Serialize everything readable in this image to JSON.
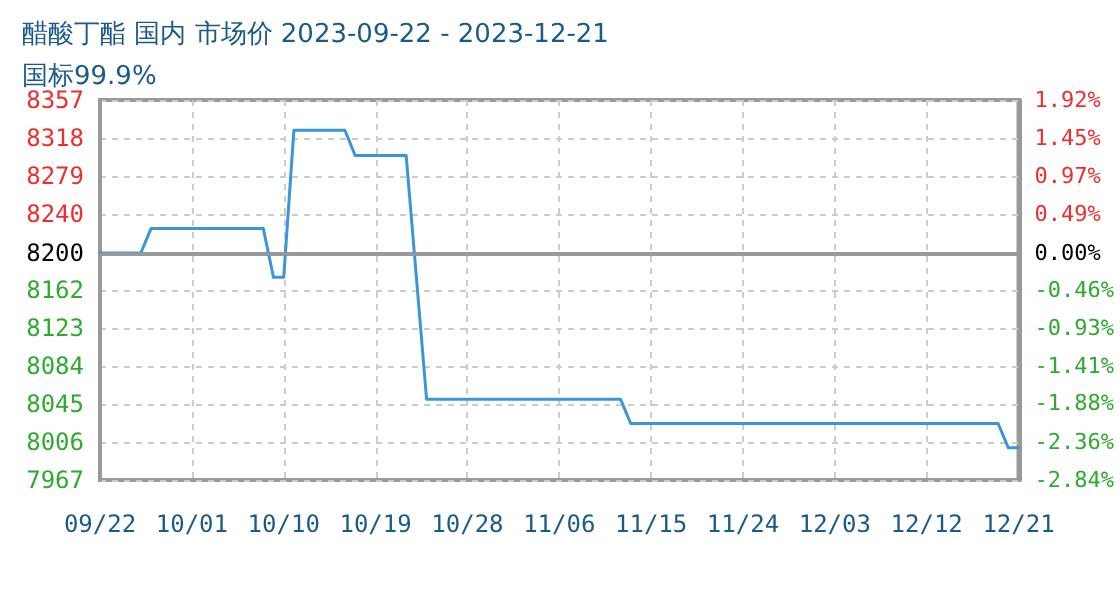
{
  "chart_data": {
    "type": "line",
    "title": "醋酸丁酯 国内 市场价 2023-09-22 - 2023-12-21",
    "subtitle": "国标99.9%",
    "series": [
      {
        "color": "#3a96d8",
        "x": [
          "2023-09-22",
          "2023-09-26",
          "2023-09-27",
          "2023-10-08",
          "2023-10-09",
          "2023-10-10",
          "2023-10-11",
          "2023-10-16",
          "2023-10-17",
          "2023-10-22",
          "2023-10-24",
          "2023-11-12",
          "2023-11-13",
          "2023-12-19",
          "2023-12-20",
          "2023-12-21"
        ],
        "values": [
          8200,
          8200,
          8225,
          8225,
          8175,
          8175,
          8326,
          8326,
          8300,
          8300,
          8050,
          8050,
          8025,
          8025,
          8000,
          8000
        ]
      }
    ],
    "xlim": [
      "2023-09-22",
      "2023-12-21"
    ],
    "xticks": [
      {
        "value": "2023-09-22",
        "label": "09/22"
      },
      {
        "value": "2023-10-01",
        "label": "10/01"
      },
      {
        "value": "2023-10-10",
        "label": "10/10"
      },
      {
        "value": "2023-10-19",
        "label": "10/19"
      },
      {
        "value": "2023-10-28",
        "label": "10/28"
      },
      {
        "value": "2023-11-06",
        "label": "11/06"
      },
      {
        "value": "2023-11-15",
        "label": "11/15"
      },
      {
        "value": "2023-11-24",
        "label": "11/24"
      },
      {
        "value": "2023-12-03",
        "label": "12/03"
      },
      {
        "value": "2023-12-12",
        "label": "12/12"
      },
      {
        "value": "2023-12-21",
        "label": "12/21"
      }
    ],
    "ylim": [
      7967,
      8357
    ],
    "yticks": [
      7967,
      8006,
      8045,
      8084,
      8123,
      8162,
      8200,
      8240,
      8279,
      8318,
      8357
    ],
    "y2lim": [
      -2.84,
      1.92
    ],
    "y2ticks": [
      {
        "value": -2.84,
        "label": "-2.84%"
      },
      {
        "value": -2.36,
        "label": "-2.36%"
      },
      {
        "value": -1.88,
        "label": "-1.88%"
      },
      {
        "value": -1.41,
        "label": "-1.41%"
      },
      {
        "value": -0.93,
        "label": "-0.93%"
      },
      {
        "value": -0.46,
        "label": "-0.46%"
      },
      {
        "value": 0,
        "label": "0.00%"
      },
      {
        "value": 0.49,
        "label": "0.49%"
      },
      {
        "value": 0.97,
        "label": "0.97%"
      },
      {
        "value": 1.45,
        "label": "1.45%"
      },
      {
        "value": 1.92,
        "label": "1.92%"
      }
    ],
    "ref_lines": [
      {
        "axis": "y",
        "value": 8200,
        "color": "#999999"
      }
    ],
    "grid": true,
    "marker": "none",
    "line_style": "solid"
  }
}
